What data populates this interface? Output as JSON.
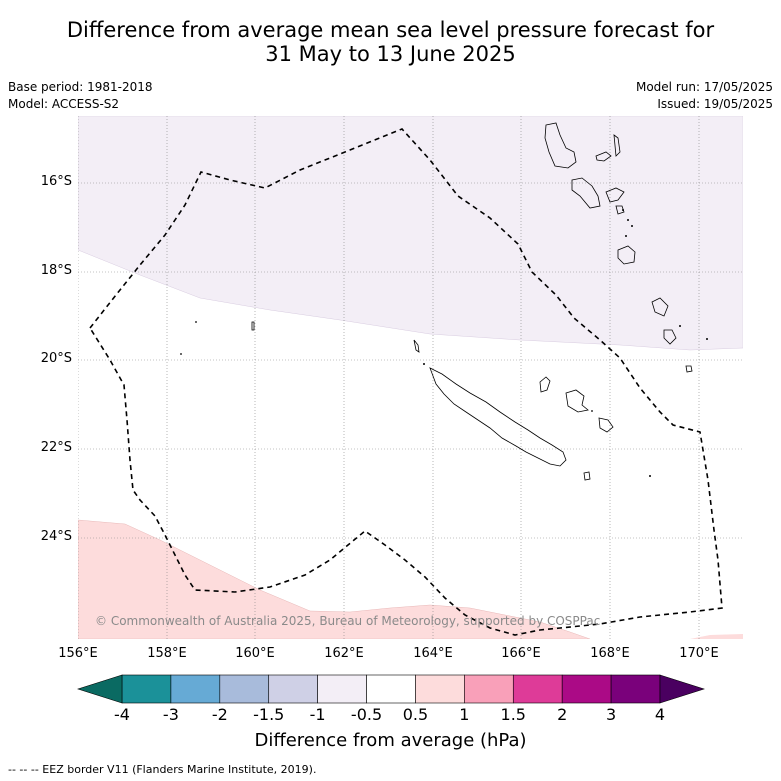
{
  "header": {
    "title_line1": "Difference from average mean sea level pressure forecast for",
    "title_line2": "31 May to 13 June 2025",
    "base_period": "Base period: 1981-2018",
    "model": "Model: ACCESS-S2",
    "model_run": "Model run: 17/05/2025",
    "issued": "Issued: 19/05/2025"
  },
  "map": {
    "lat_labels": [
      "16°S",
      "18°S",
      "20°S",
      "22°S",
      "24°S"
    ],
    "lon_labels": [
      "156°E",
      "158°E",
      "160°E",
      "162°E",
      "164°E",
      "166°E",
      "168°E",
      "170°E"
    ],
    "copyright": "© Commonwealth of Australia 2025, Bureau of Meteorology, supported by COSPPac",
    "colors": {
      "band_negative_small": "#f3eef6",
      "band_positive_small": "#fddcdc",
      "coastline": "#000000",
      "grid": "#888888"
    }
  },
  "colorbar": {
    "labels": [
      "-4",
      "-3",
      "-2",
      "-1.5",
      "-1",
      "-0.5",
      "0.5",
      "1",
      "1.5",
      "2",
      "3",
      "4"
    ],
    "colors": [
      "#1b9199",
      "#66aad5",
      "#a8bbdb",
      "#cfd0e6",
      "#f3eef6",
      "#ffffff",
      "#fddcdc",
      "#f9a0b9",
      "#de3b98",
      "#ab0a86",
      "#7a017b"
    ],
    "under_color": "#0a6a62",
    "over_color": "#4a0060",
    "title": "Difference from average (hPa)"
  },
  "footer": {
    "legend_text": "--  --  -- EEZ border V11 (Flanders Marine Institute, 2019)."
  }
}
